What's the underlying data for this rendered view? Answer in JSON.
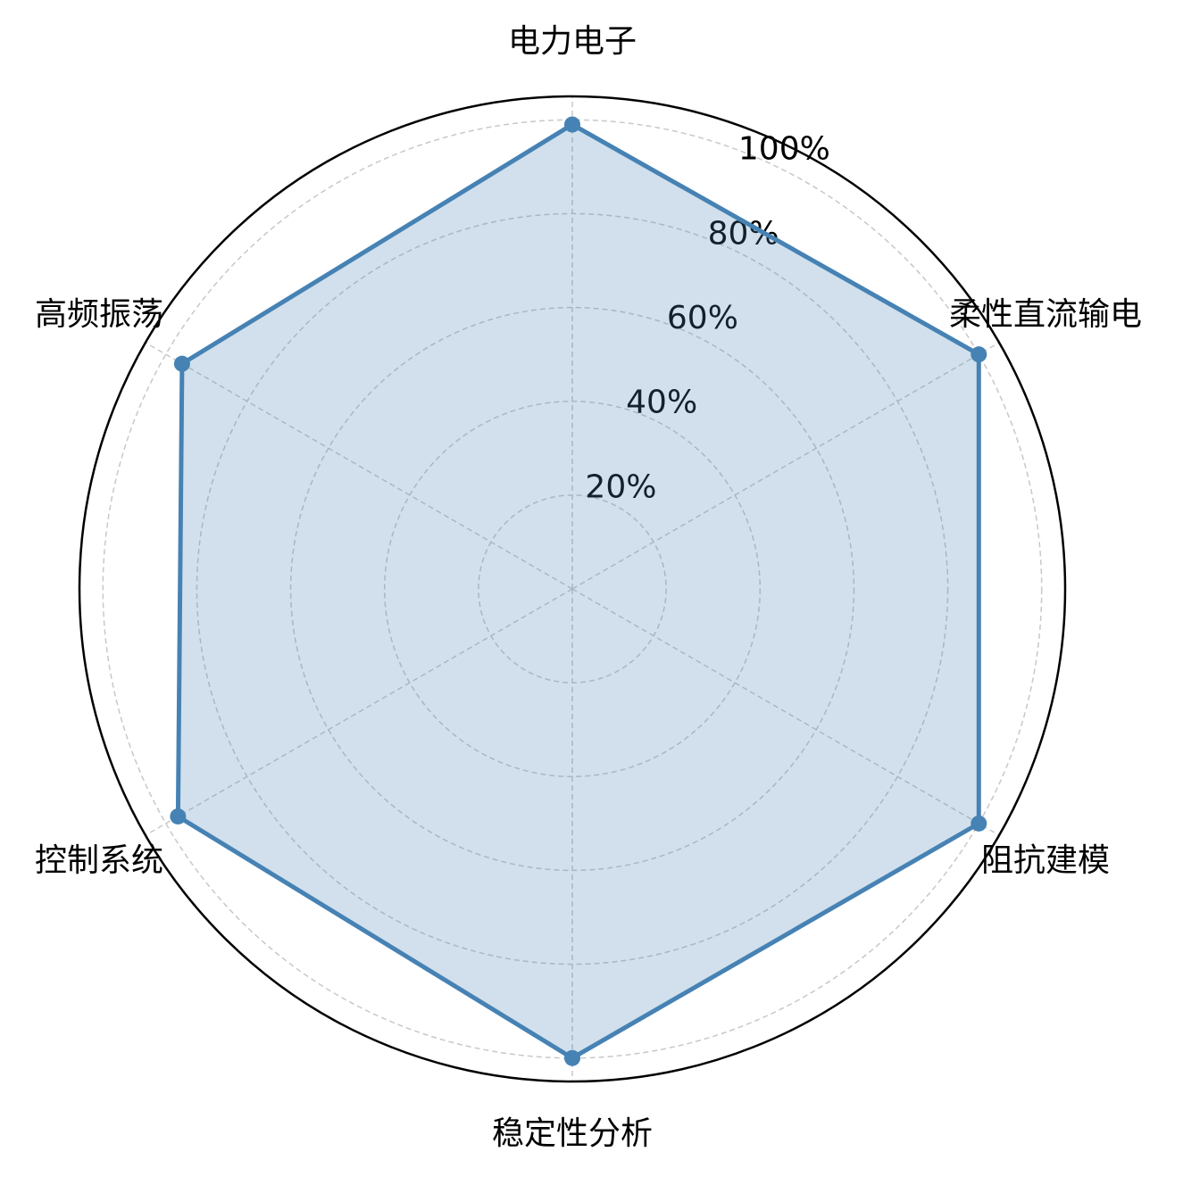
{
  "chart_data": {
    "type": "radar",
    "categories": [
      "电力电子",
      "柔性直流输电",
      "阻抗建模",
      "稳定性分析",
      "控制系统",
      "高频振荡"
    ],
    "series": [
      {
        "color": "#4682b4",
        "values": [
          99,
          100,
          100,
          100,
          97,
          96
        ]
      }
    ],
    "ylim": [
      0,
      105
    ],
    "yticks": [
      {
        "value": 20,
        "label": "20%"
      },
      {
        "value": 40,
        "label": "40%"
      },
      {
        "value": 60,
        "label": "60%"
      },
      {
        "value": 80,
        "label": "80%"
      },
      {
        "value": 100,
        "label": "100%"
      }
    ],
    "grid": true
  }
}
